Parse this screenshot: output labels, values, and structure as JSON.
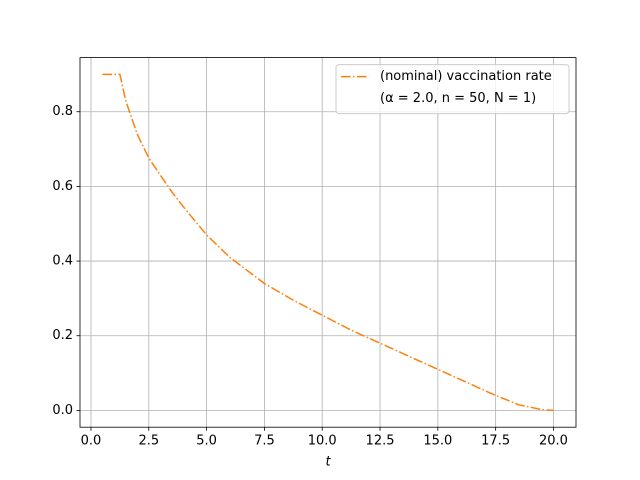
{
  "chart_data": {
    "type": "line",
    "x_label": "t",
    "x": [
      0.5,
      1.25,
      1.5,
      2,
      2.5,
      3,
      3.5,
      4,
      5,
      6,
      7.5,
      8.75,
      10,
      11.25,
      12.5,
      13.75,
      15,
      16.25,
      17.5,
      18.5,
      19.5,
      20
    ],
    "series": [
      {
        "name": "(nominal) vaccination rate",
        "color": "#ff7f0e",
        "line_style": "dashdot",
        "values": [
          0.9,
          0.9,
          0.83,
          0.74,
          0.676,
          0.63,
          0.585,
          0.545,
          0.47,
          0.41,
          0.34,
          0.295,
          0.255,
          0.215,
          0.18,
          0.145,
          0.11,
          0.075,
          0.04,
          0.015,
          0.002,
          0
        ]
      }
    ],
    "legend_note": "(α = 2.0, n = 50, N = 1)",
    "legend_position": "upper right",
    "xlim": [
      -0.475,
      20.975
    ],
    "ylim": [
      -0.045,
      0.945
    ],
    "xticks": [
      {
        "value": 0,
        "label": "0.0"
      },
      2.5,
      {
        "value": 5,
        "label": "5.0"
      },
      7.5,
      {
        "value": 10,
        "label": "10.0"
      },
      12.5,
      {
        "value": 15,
        "label": "15.0"
      },
      17.5,
      {
        "value": 20,
        "label": "20.0"
      }
    ],
    "yticks": [
      {
        "value": 0,
        "label": "0.0"
      },
      0.2,
      0.4,
      0.6,
      0.8
    ],
    "grid": true
  }
}
